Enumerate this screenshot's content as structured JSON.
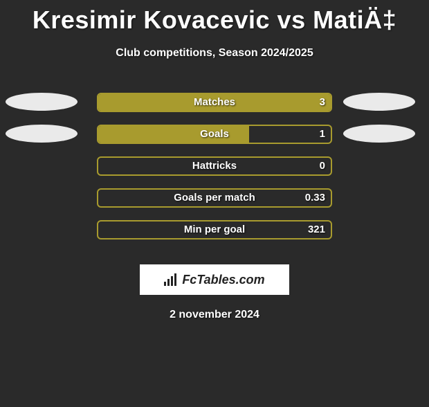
{
  "title": "Kresimir Kovacevic vs MatiÄ‡",
  "subtitle": "Club competitions, Season 2024/2025",
  "date": "2 november 2024",
  "logo": "FcTables.com",
  "colors": {
    "background": "#2a2a2a",
    "bar_fill": "#a89b2e",
    "bar_border": "#a89b2e",
    "ellipse": "#eaeaea",
    "text": "#ffffff"
  },
  "stats": [
    {
      "label": "Matches",
      "value": "3",
      "fill_pct": 100,
      "left_ellipse": true,
      "right_ellipse": true
    },
    {
      "label": "Goals",
      "value": "1",
      "fill_pct": 65,
      "left_ellipse": true,
      "right_ellipse": true
    },
    {
      "label": "Hattricks",
      "value": "0",
      "fill_pct": 0,
      "left_ellipse": false,
      "right_ellipse": false
    },
    {
      "label": "Goals per match",
      "value": "0.33",
      "fill_pct": 0,
      "left_ellipse": false,
      "right_ellipse": false
    },
    {
      "label": "Min per goal",
      "value": "321",
      "fill_pct": 0,
      "left_ellipse": false,
      "right_ellipse": false
    }
  ]
}
